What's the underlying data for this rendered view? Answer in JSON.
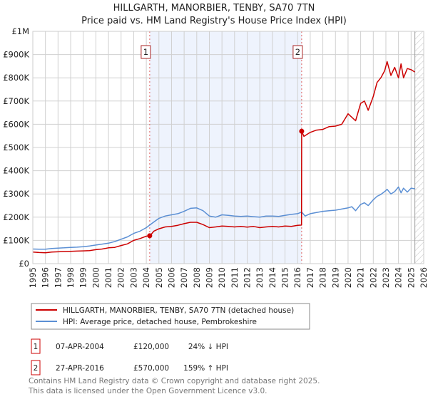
{
  "chart_data": {
    "type": "line",
    "title": "HILLGARTH, MANORBIER, TENBY, SA70 7TN",
    "subtitle": "Price paid vs. HM Land Registry's House Price Index (HPI)",
    "xlim": [
      1995,
      2026
    ],
    "ylim": [
      0,
      1000000
    ],
    "x_ticks": [
      "1995",
      "1996",
      "1997",
      "1998",
      "1999",
      "2000",
      "2001",
      "2002",
      "2003",
      "2004",
      "2005",
      "2006",
      "2007",
      "2008",
      "2009",
      "2010",
      "2011",
      "2012",
      "2013",
      "2014",
      "2015",
      "2016",
      "2017",
      "2018",
      "2019",
      "2020",
      "2021",
      "2022",
      "2023",
      "2024",
      "2025",
      "2026"
    ],
    "y_ticks": [
      {
        "value": 0,
        "label": "£0"
      },
      {
        "value": 100000,
        "label": "£100K"
      },
      {
        "value": 200000,
        "label": "£200K"
      },
      {
        "value": 300000,
        "label": "£300K"
      },
      {
        "value": 400000,
        "label": "£400K"
      },
      {
        "value": 500000,
        "label": "£500K"
      },
      {
        "value": 600000,
        "label": "£600K"
      },
      {
        "value": 700000,
        "label": "£700K"
      },
      {
        "value": 800000,
        "label": "£800K"
      },
      {
        "value": 900000,
        "label": "£900K"
      },
      {
        "value": 1000000,
        "label": "£1M"
      }
    ],
    "grid": true,
    "shaded_range": [
      2004.27,
      2016.32
    ],
    "forecast_hatch_from": 2025.3,
    "series": [
      {
        "name": "HILLGARTH, MANORBIER, TENBY, SA70 7TN (detached house)",
        "color": "#cc0000",
        "x": [
          1995,
          1995.5,
          1996,
          1996.5,
          1997,
          1997.5,
          1998,
          1998.5,
          1999,
          1999.5,
          2000,
          2000.5,
          2001,
          2001.5,
          2002,
          2002.5,
          2003,
          2003.5,
          2004,
          2004.27,
          2004.27,
          2004.6,
          2005,
          2005.5,
          2006,
          2006.5,
          2007,
          2007.5,
          2008,
          2008.5,
          2009,
          2009.5,
          2010,
          2010.5,
          2011,
          2011.5,
          2012,
          2012.5,
          2013,
          2013.5,
          2014,
          2014.5,
          2015,
          2015.5,
          2016,
          2016.31,
          2016.32,
          2016.5,
          2017,
          2017.5,
          2018,
          2018.5,
          2019,
          2019.5,
          2020,
          2020.3,
          2020.6,
          2021,
          2021.3,
          2021.6,
          2022,
          2022.3,
          2022.6,
          2022.9,
          2023.1,
          2023.4,
          2023.7,
          2024,
          2024.2,
          2024.4,
          2024.7,
          2025,
          2025.3
        ],
        "values": [
          50000,
          48000,
          47000,
          50000,
          51000,
          52000,
          53000,
          54000,
          55000,
          56000,
          60000,
          63000,
          68000,
          70000,
          78000,
          85000,
          100000,
          108000,
          118000,
          120000,
          118000,
          140000,
          150000,
          158000,
          160000,
          165000,
          172000,
          178000,
          178000,
          168000,
          155000,
          158000,
          162000,
          160000,
          158000,
          160000,
          157000,
          160000,
          155000,
          158000,
          160000,
          158000,
          162000,
          160000,
          165000,
          166000,
          570000,
          548000,
          565000,
          575000,
          578000,
          590000,
          592000,
          600000,
          645000,
          630000,
          615000,
          690000,
          700000,
          660000,
          720000,
          780000,
          800000,
          830000,
          870000,
          810000,
          845000,
          800000,
          860000,
          800000,
          840000,
          835000,
          825000
        ]
      },
      {
        "name": "HPI: Average price, detached house, Pembrokeshire",
        "color": "#5b8fd4",
        "x": [
          1995,
          1995.5,
          1996,
          1996.5,
          1997,
          1997.5,
          1998,
          1998.5,
          1999,
          1999.5,
          2000,
          2000.5,
          2001,
          2001.5,
          2002,
          2002.5,
          2003,
          2003.5,
          2004,
          2004.5,
          2005,
          2005.5,
          2006,
          2006.5,
          2007,
          2007.5,
          2008,
          2008.5,
          2009,
          2009.5,
          2010,
          2010.5,
          2011,
          2011.5,
          2012,
          2012.5,
          2013,
          2013.5,
          2014,
          2014.5,
          2015,
          2015.5,
          2016,
          2016.32,
          2016.6,
          2017,
          2017.5,
          2018,
          2018.5,
          2019,
          2019.5,
          2020,
          2020.3,
          2020.6,
          2021,
          2021.3,
          2021.6,
          2022,
          2022.3,
          2022.6,
          2022.9,
          2023.1,
          2023.4,
          2023.7,
          2024,
          2024.2,
          2024.4,
          2024.7,
          2025,
          2025.3
        ],
        "values": [
          63000,
          62000,
          62000,
          65000,
          67000,
          68000,
          70000,
          71000,
          73000,
          76000,
          80000,
          84000,
          88000,
          95000,
          105000,
          115000,
          130000,
          140000,
          155000,
          175000,
          195000,
          205000,
          210000,
          215000,
          225000,
          238000,
          240000,
          228000,
          205000,
          200000,
          210000,
          208000,
          205000,
          203000,
          205000,
          202000,
          200000,
          205000,
          205000,
          203000,
          208000,
          212000,
          215000,
          222000,
          205000,
          215000,
          220000,
          225000,
          228000,
          230000,
          235000,
          240000,
          245000,
          228000,
          255000,
          262000,
          250000,
          275000,
          290000,
          298000,
          310000,
          320000,
          300000,
          310000,
          330000,
          305000,
          325000,
          308000,
          325000,
          322000
        ]
      }
    ],
    "sales": [
      {
        "label": "1",
        "date": "07-APR-2004",
        "x": 2004.27,
        "price": "£120,000",
        "value": 120000,
        "hpi": "24% ↓ HPI"
      },
      {
        "label": "2",
        "date": "27-APR-2016",
        "x": 2016.32,
        "price": "£570,000",
        "value": 570000,
        "hpi": "159% ↑ HPI"
      }
    ],
    "legend_placement": "below"
  },
  "footer": {
    "line1": "Contains HM Land Registry data © Crown copyright and database right 2025.",
    "line2": "This data is licensed under the Open Government Licence v3.0."
  }
}
